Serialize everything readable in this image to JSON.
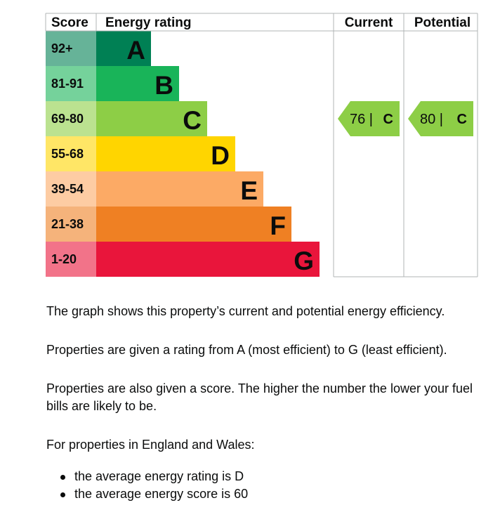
{
  "chart_data": {
    "type": "bar",
    "headers": {
      "score": "Score",
      "rating": "Energy rating",
      "current": "Current",
      "potential": "Potential"
    },
    "bands": [
      {
        "letter": "A",
        "range": "92+",
        "color": "#008054",
        "score_color": "#66b398"
      },
      {
        "letter": "B",
        "range": "81-91",
        "color": "#19b459",
        "score_color": "#75d29b"
      },
      {
        "letter": "C",
        "range": "69-80",
        "color": "#8dce46",
        "score_color": "#bbe290"
      },
      {
        "letter": "D",
        "range": "55-68",
        "color": "#ffd500",
        "score_color": "#ffe666"
      },
      {
        "letter": "E",
        "range": "39-54",
        "color": "#fcaa65",
        "score_color": "#fdcca3"
      },
      {
        "letter": "F",
        "range": "21-38",
        "color": "#ef8023",
        "score_color": "#f5b37b"
      },
      {
        "letter": "G",
        "range": "1-20",
        "color": "#e9153b",
        "score_color": "#f27389"
      }
    ],
    "current": {
      "score": 76,
      "band": "C",
      "label": "76 |",
      "letter": "C"
    },
    "potential": {
      "score": 80,
      "band": "C",
      "label": "80 |",
      "letter": "C"
    }
  },
  "text": {
    "p1": "The graph shows this property’s current and potential energy efficiency.",
    "p2": "Properties are given a rating from A (most efficient) to G (least efficient).",
    "p3": "Properties are also given a score. The higher the number the lower your fuel bills are likely to be.",
    "p4": "For properties in England and Wales:",
    "bullets": [
      "the average energy rating is D",
      "the average energy score is 60"
    ]
  }
}
